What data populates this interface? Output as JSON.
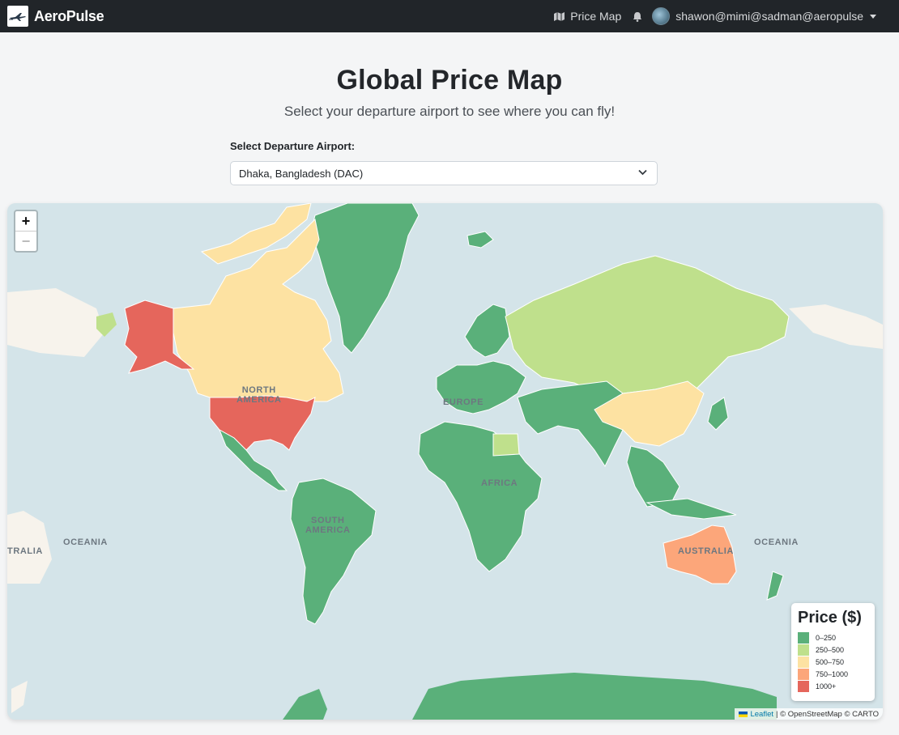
{
  "nav": {
    "brand": "AeroPulse",
    "price_map_label": "Price Map",
    "user": "shawon@mimi@sadman@aeropulse"
  },
  "page": {
    "title": "Global Price Map",
    "subtitle": "Select your departure airport to see where you can fly!",
    "select_label": "Select Departure Airport:",
    "selected_airport": "Dhaka, Bangladesh (DAC)"
  },
  "map": {
    "zoom_in": "+",
    "zoom_out": "−",
    "labels": {
      "north_america": "NORTH\nAMERICA",
      "south_america": "SOUTH\nAMERICA",
      "europe": "EUROPE",
      "africa": "AFRICA",
      "oceania_left": "OCEANIA",
      "oceania_right": "OCEANIA",
      "australia": "AUSTRALIA",
      "australia_left": "TRALIA"
    },
    "attribution": {
      "leaflet": "Leaflet",
      "rest": "| © OpenStreetMap © CARTO"
    }
  },
  "legend": {
    "title": "Price ($)",
    "items": [
      {
        "label": "0–250",
        "color": "#5ab07a"
      },
      {
        "label": "250–500",
        "color": "#bfe08c"
      },
      {
        "label": "500–750",
        "color": "#fde2a2"
      },
      {
        "label": "750–1000",
        "color": "#fca67a"
      },
      {
        "label": "1000+",
        "color": "#e5665c"
      }
    ]
  },
  "colors": {
    "navbar": "#212529",
    "ocean": "#d4e4e9",
    "land_base": "#f7f3ec"
  }
}
